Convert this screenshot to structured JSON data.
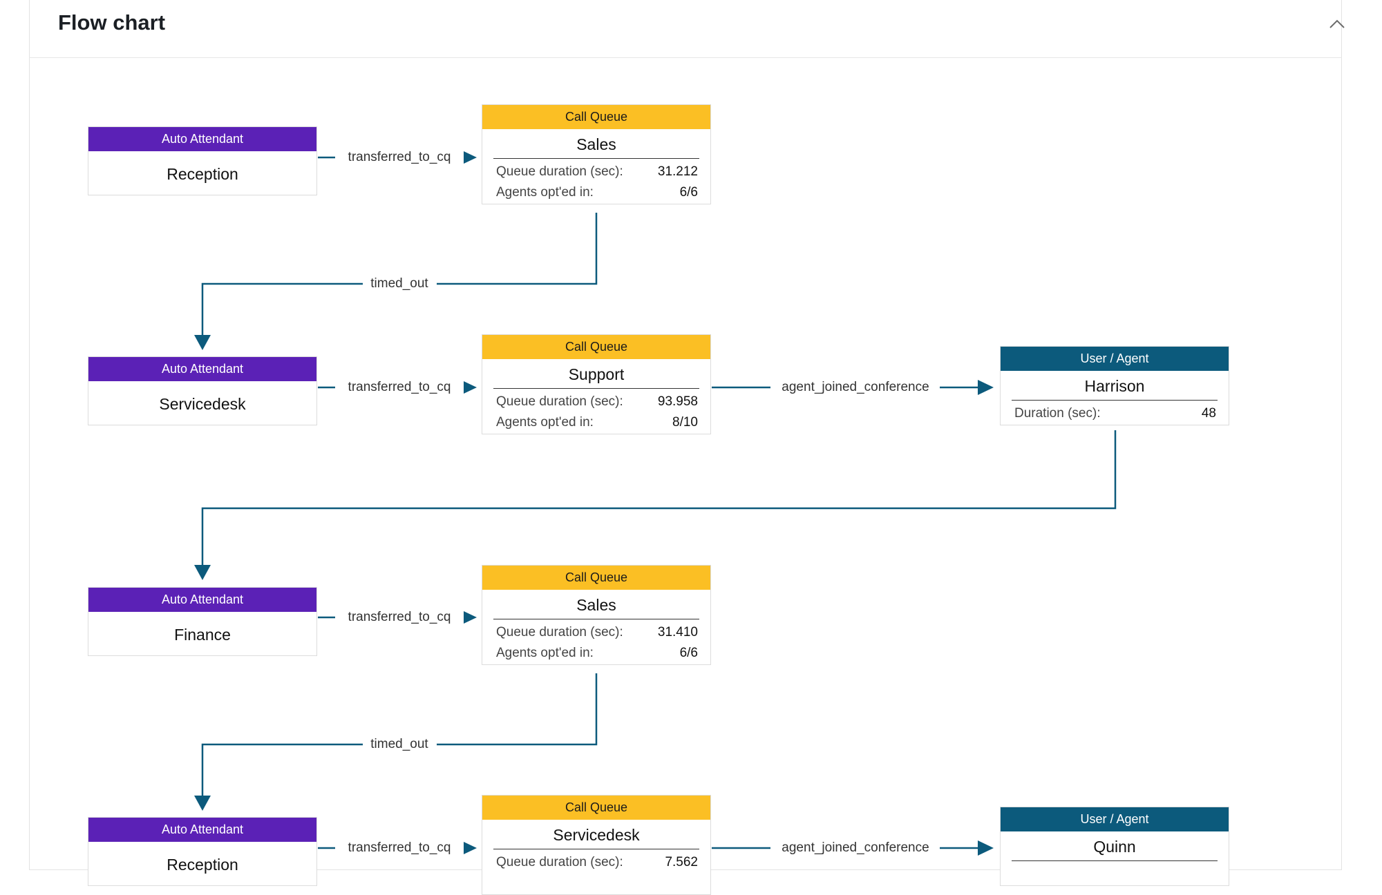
{
  "header": {
    "title": "Flow chart"
  },
  "colors": {
    "auto_attendant": "#5b21b6",
    "call_queue": "#fbbf24",
    "user_agent": "#0c5a7c",
    "edge": "#0c5a7c"
  },
  "nodes": [
    {
      "type": "Auto Attendant",
      "name": "Reception"
    },
    {
      "type": "Call Queue",
      "name": "Sales",
      "stats": [
        {
          "label": "Queue duration (sec):",
          "value": "31.212"
        },
        {
          "label": "Agents opt'ed in:",
          "value": "6/6"
        }
      ]
    },
    {
      "type": "Auto Attendant",
      "name": "Servicedesk"
    },
    {
      "type": "Call Queue",
      "name": "Support",
      "stats": [
        {
          "label": "Queue duration (sec):",
          "value": "93.958"
        },
        {
          "label": "Agents opt'ed in:",
          "value": "8/10"
        }
      ]
    },
    {
      "type": "User / Agent",
      "name": "Harrison",
      "stats": [
        {
          "label": "Duration (sec):",
          "value": "48"
        }
      ]
    },
    {
      "type": "Auto Attendant",
      "name": "Finance"
    },
    {
      "type": "Call Queue",
      "name": "Sales",
      "stats": [
        {
          "label": "Queue duration (sec):",
          "value": "31.410"
        },
        {
          "label": "Agents opt'ed in:",
          "value": "6/6"
        }
      ]
    },
    {
      "type": "Auto Attendant",
      "name": "Reception"
    },
    {
      "type": "Call Queue",
      "name": "Servicedesk",
      "stats": [
        {
          "label": "Queue duration (sec):",
          "value": "7.562"
        }
      ]
    },
    {
      "type": "User / Agent",
      "name": "Quinn"
    }
  ],
  "edges": [
    {
      "label": "transferred_to_cq"
    },
    {
      "label": "timed_out"
    },
    {
      "label": "transferred_to_cq"
    },
    {
      "label": "agent_joined_conference"
    },
    {
      "label": ""
    },
    {
      "label": "transferred_to_cq"
    },
    {
      "label": "timed_out"
    },
    {
      "label": "transferred_to_cq"
    },
    {
      "label": "agent_joined_conference"
    }
  ]
}
